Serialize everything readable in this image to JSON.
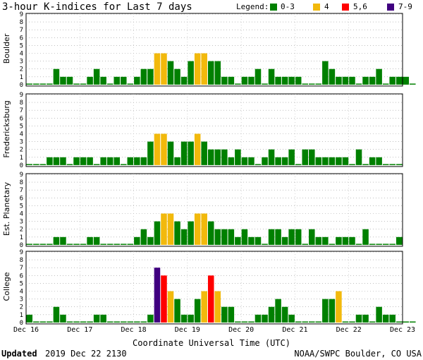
{
  "chart_data": {
    "type": "bar",
    "title": "3-hour K-indices for Last 7 days",
    "legend": {
      "label": "Legend:",
      "placement": "top-right",
      "entries": [
        {
          "label": "0-3",
          "color": "#008000"
        },
        {
          "label": "4",
          "color": "#f2b90c"
        },
        {
          "label": "5,6",
          "color": "#ff0000"
        },
        {
          "label": "7-9",
          "color": "#400080"
        }
      ]
    },
    "xlabel": "Coordinate Universal Time (UTC)",
    "x_tick_labels": [
      "Dec 16",
      "Dec 17",
      "Dec 18",
      "Dec 19",
      "Dec 20",
      "Dec 21",
      "Dec 22",
      "Dec 23"
    ],
    "ylim": [
      0,
      9
    ],
    "y_tick_labels": [
      "0",
      "1",
      "2",
      "3",
      "4",
      "5",
      "6",
      "7",
      "8",
      "9"
    ],
    "grid": "dotted horizontal",
    "panels": [
      {
        "name": "Boulder",
        "values": [
          0,
          0,
          0,
          0,
          2,
          1,
          1,
          0,
          0,
          1,
          2,
          1,
          0,
          1,
          1,
          0,
          1,
          2,
          2,
          4,
          4,
          3,
          2,
          1,
          3,
          4,
          4,
          3,
          3,
          1,
          1,
          0,
          1,
          1,
          2,
          0,
          2,
          1,
          1,
          1,
          1,
          0,
          0,
          0,
          3,
          2,
          1,
          1,
          1,
          0,
          1,
          1,
          2,
          0,
          1,
          1,
          1,
          0
        ]
      },
      {
        "name": "Fredericksburg",
        "values": [
          0,
          0,
          0,
          1,
          1,
          1,
          0,
          1,
          1,
          1,
          0,
          1,
          1,
          1,
          0,
          1,
          1,
          1,
          3,
          4,
          4,
          3,
          1,
          3,
          3,
          4,
          3,
          2,
          2,
          2,
          1,
          2,
          1,
          1,
          0,
          1,
          2,
          1,
          1,
          2,
          0,
          2,
          2,
          1,
          1,
          1,
          1,
          1,
          0,
          2,
          0,
          1,
          1,
          0,
          0,
          0
        ]
      },
      {
        "name": "Est. Planetary",
        "values": [
          0,
          0,
          0,
          0,
          1,
          1,
          0,
          0,
          0,
          1,
          1,
          0,
          0,
          0,
          0,
          0,
          1,
          2,
          1,
          3,
          4,
          4,
          3,
          2,
          3,
          4,
          4,
          3,
          2,
          2,
          2,
          1,
          2,
          1,
          1,
          0,
          2,
          2,
          1,
          2,
          2,
          0,
          2,
          1,
          1,
          0,
          1,
          1,
          1,
          0,
          2,
          0,
          0,
          0,
          0,
          1
        ]
      },
      {
        "name": "College",
        "values": [
          1,
          0,
          0,
          0,
          2,
          1,
          0,
          0,
          0,
          0,
          1,
          1,
          0,
          0,
          0,
          0,
          0,
          0,
          1,
          7,
          6,
          4,
          3,
          1,
          1,
          3,
          4,
          6,
          4,
          2,
          2,
          0,
          0,
          0,
          1,
          1,
          2,
          3,
          2,
          1,
          0,
          0,
          0,
          0,
          3,
          3,
          4,
          0,
          0,
          1,
          1,
          0,
          2,
          1,
          1,
          0,
          0,
          0
        ]
      }
    ]
  },
  "footer": {
    "updated_label": "Updated",
    "updated_value": "2019 Dec 22 2130",
    "source": "NOAA/SWPC Boulder, CO USA"
  }
}
